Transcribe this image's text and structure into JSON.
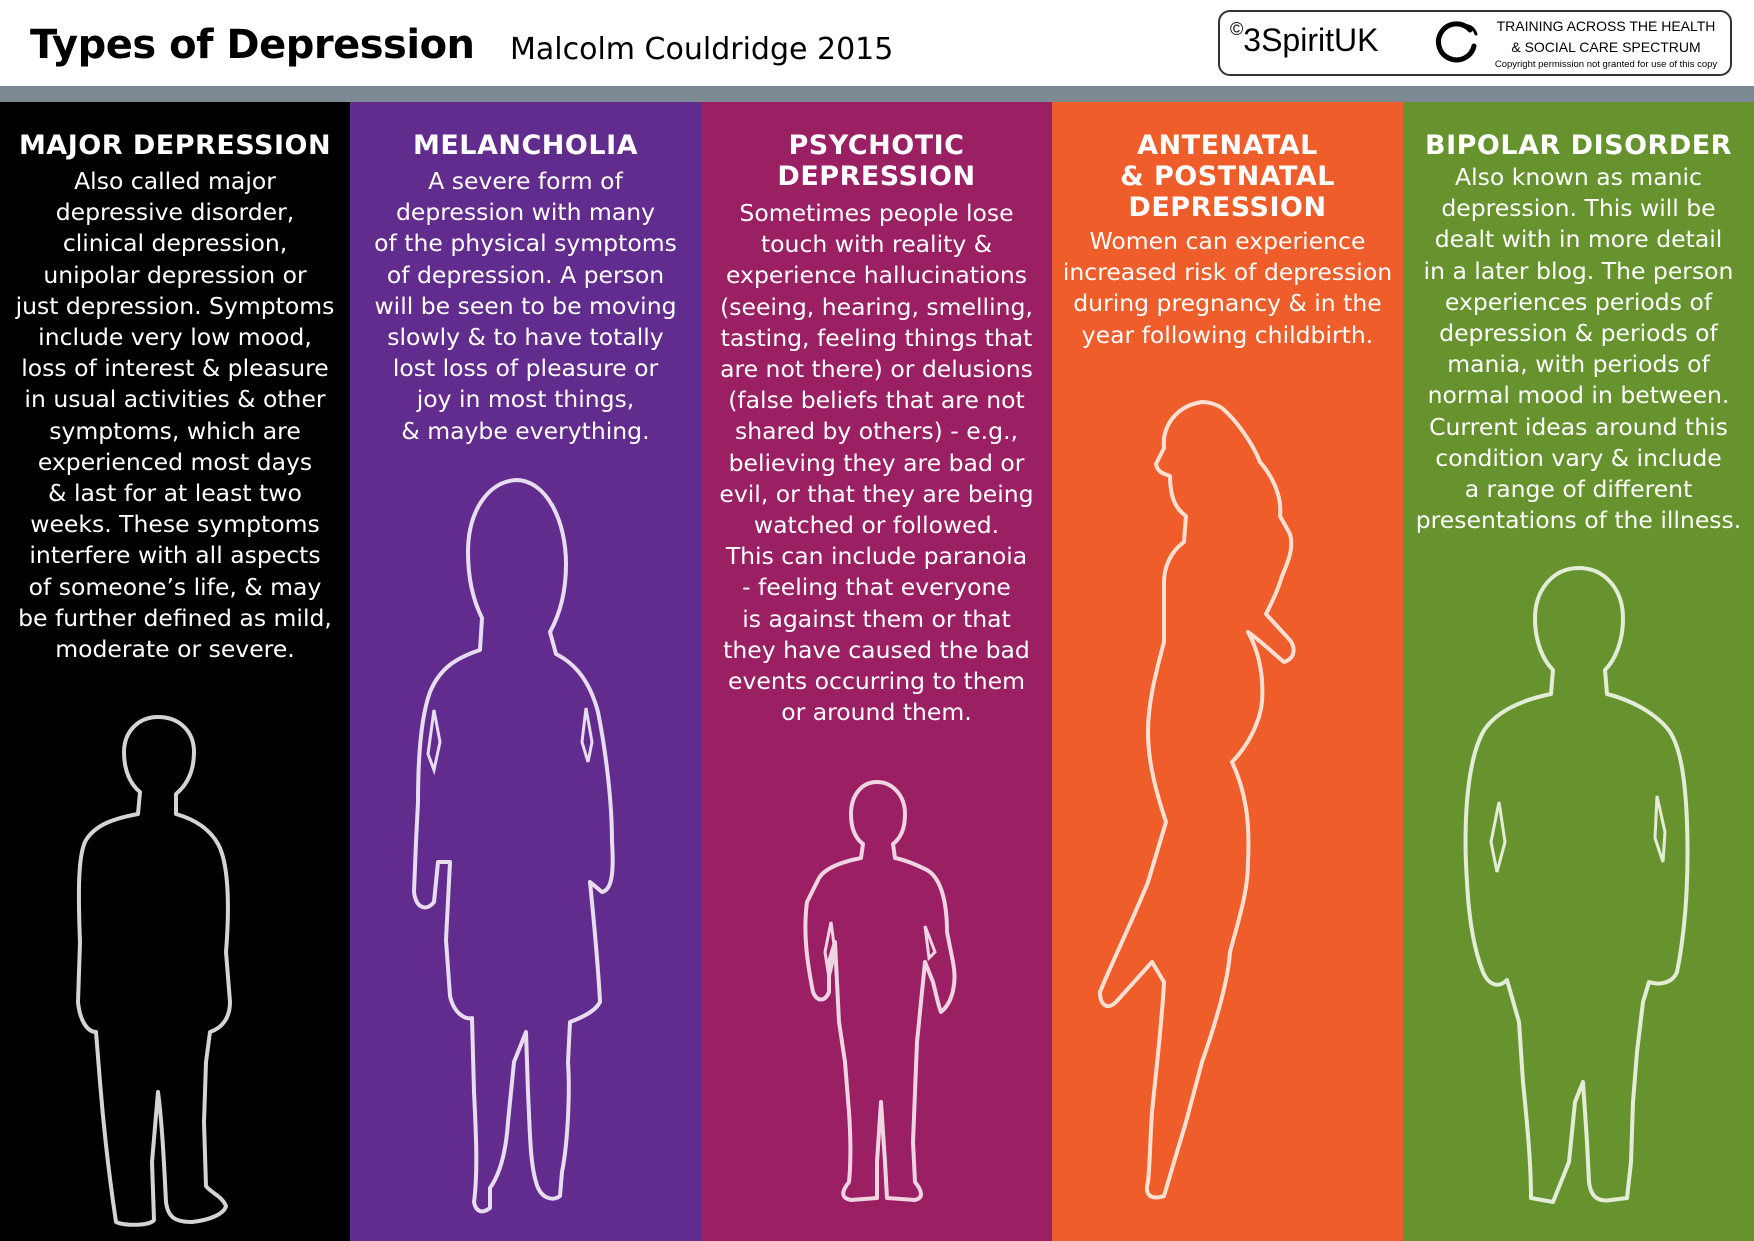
{
  "header": {
    "title": "Types of Depression",
    "author": "Malcolm Couldridge 2015",
    "brand": {
      "copyright_symbol": "©",
      "name": "3SpiritUK",
      "tagline_line1": "TRAINING ACROSS THE HEALTH",
      "tagline_line2": "& SOCIAL CARE SPECTRUM",
      "copyright_notice": "Copyright permission not granted for use of this copy"
    }
  },
  "colors": {
    "major": "#000000",
    "melancholia": "#622b8e",
    "psychotic": "#9b1f63",
    "antenatal": "#ef5d2b",
    "bipolar": "#67932f",
    "divider": "#7e8a93"
  },
  "columns": {
    "major": {
      "heading_lines": [
        "MAJOR DEPRESSION"
      ],
      "body_lines": [
        "Also called major",
        "depressive disorder,",
        "clinical depression,",
        "unipolar depression or",
        "just depression. Symptoms",
        "include very low mood,",
        "loss of interest & pleasure",
        "in usual activities & other",
        "symptoms, which are",
        "experienced most days",
        "& last for at least two",
        "weeks. These symptoms",
        "interfere with all aspects",
        "of someone’s life, & may",
        "be further defined as mild,",
        "moderate or severe."
      ],
      "figure_icon": "man-silhouette-outline-icon"
    },
    "melancholia": {
      "heading_lines": [
        "MELANCHOLIA"
      ],
      "body_lines": [
        "A severe form of",
        "depression with many",
        "of the physical symptoms",
        "of depression. A person",
        "will be seen to be moving",
        "slowly & to have totally",
        "lost loss of pleasure or",
        "joy in most things,",
        "& maybe everything."
      ],
      "figure_icon": "woman-silhouette-outline-icon"
    },
    "psychotic": {
      "heading_lines": [
        "PSYCHOTIC",
        "DEPRESSION"
      ],
      "body_lines": [
        "Sometimes people lose",
        "touch with reality &",
        "experience hallucinations",
        "(seeing, hearing, smelling,",
        "tasting, feeling things that",
        "are not there) or delusions",
        "(false beliefs that are not",
        "shared by others) - e.g.,",
        "believing they are bad or",
        "evil, or that they are being",
        "watched or followed.",
        "This can include paranoia",
        "- feeling that everyone",
        "is against them or that",
        "they have caused the bad",
        "events occurring to them",
        "or around them."
      ],
      "figure_icon": "man-hands-on-hips-outline-icon"
    },
    "antenatal": {
      "heading_lines": [
        "ANTENATAL",
        "& POSTNATAL",
        "DEPRESSION"
      ],
      "body_lines": [
        "Women can experience",
        "increased risk of depression",
        "during pregnancy & in the",
        "year following childbirth."
      ],
      "figure_icon": "pregnant-woman-silhouette-outline-icon"
    },
    "bipolar": {
      "heading_lines": [
        "BIPOLAR DISORDER"
      ],
      "body_lines": [
        "Also known as manic",
        "depression. This will be",
        "dealt with in more detail",
        "in a later blog. The person",
        "experiences periods of",
        "depression & periods of",
        "mania, with periods of",
        "normal mood in between.",
        "Current ideas around this",
        "condition vary & include",
        "a range of different",
        "presentations of the illness."
      ],
      "figure_icon": "large-man-silhouette-outline-icon"
    }
  }
}
